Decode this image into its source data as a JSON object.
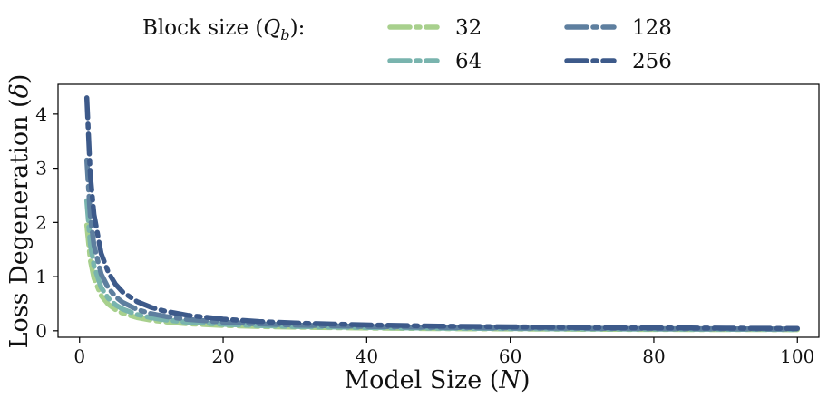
{
  "chart_data": {
    "type": "line",
    "title": "",
    "xlabel": "Model Size (N)",
    "ylabel": "Loss Degeneration (δ)",
    "xlim": [
      -3,
      103
    ],
    "ylim": [
      -0.12,
      4.55
    ],
    "xticks": [
      0,
      20,
      40,
      60,
      80,
      100
    ],
    "yticks": [
      0,
      1,
      2,
      3,
      4
    ],
    "grid": false,
    "legend": {
      "title": "Block size (Q_b):",
      "placement": "top",
      "columns": 2
    },
    "x": [
      1,
      1.5,
      2,
      3,
      4,
      5,
      6,
      8,
      10,
      12,
      15,
      20,
      25,
      30,
      40,
      50,
      60,
      70,
      80,
      90,
      100
    ],
    "series": [
      {
        "name": "32",
        "color": "#a8d08d",
        "values": [
          1.95,
          1.3,
          0.97,
          0.65,
          0.49,
          0.39,
          0.325,
          0.244,
          0.195,
          0.163,
          0.13,
          0.098,
          0.078,
          0.065,
          0.049,
          0.039,
          0.033,
          0.028,
          0.024,
          0.022,
          0.02
        ]
      },
      {
        "name": "64",
        "color": "#79b4ae",
        "values": [
          2.4,
          1.6,
          1.2,
          0.8,
          0.6,
          0.48,
          0.4,
          0.3,
          0.24,
          0.2,
          0.16,
          0.12,
          0.096,
          0.08,
          0.06,
          0.048,
          0.04,
          0.034,
          0.03,
          0.027,
          0.024
        ]
      },
      {
        "name": "128",
        "color": "#5e7f9f",
        "values": [
          3.15,
          2.1,
          1.58,
          1.05,
          0.79,
          0.63,
          0.525,
          0.394,
          0.315,
          0.263,
          0.21,
          0.158,
          0.126,
          0.105,
          0.079,
          0.063,
          0.053,
          0.045,
          0.039,
          0.035,
          0.032
        ]
      },
      {
        "name": "256",
        "color": "#3d5a8a",
        "values": [
          4.3,
          2.87,
          2.15,
          1.43,
          1.08,
          0.86,
          0.717,
          0.538,
          0.43,
          0.358,
          0.287,
          0.215,
          0.172,
          0.143,
          0.108,
          0.086,
          0.072,
          0.061,
          0.054,
          0.048,
          0.043
        ]
      }
    ]
  }
}
